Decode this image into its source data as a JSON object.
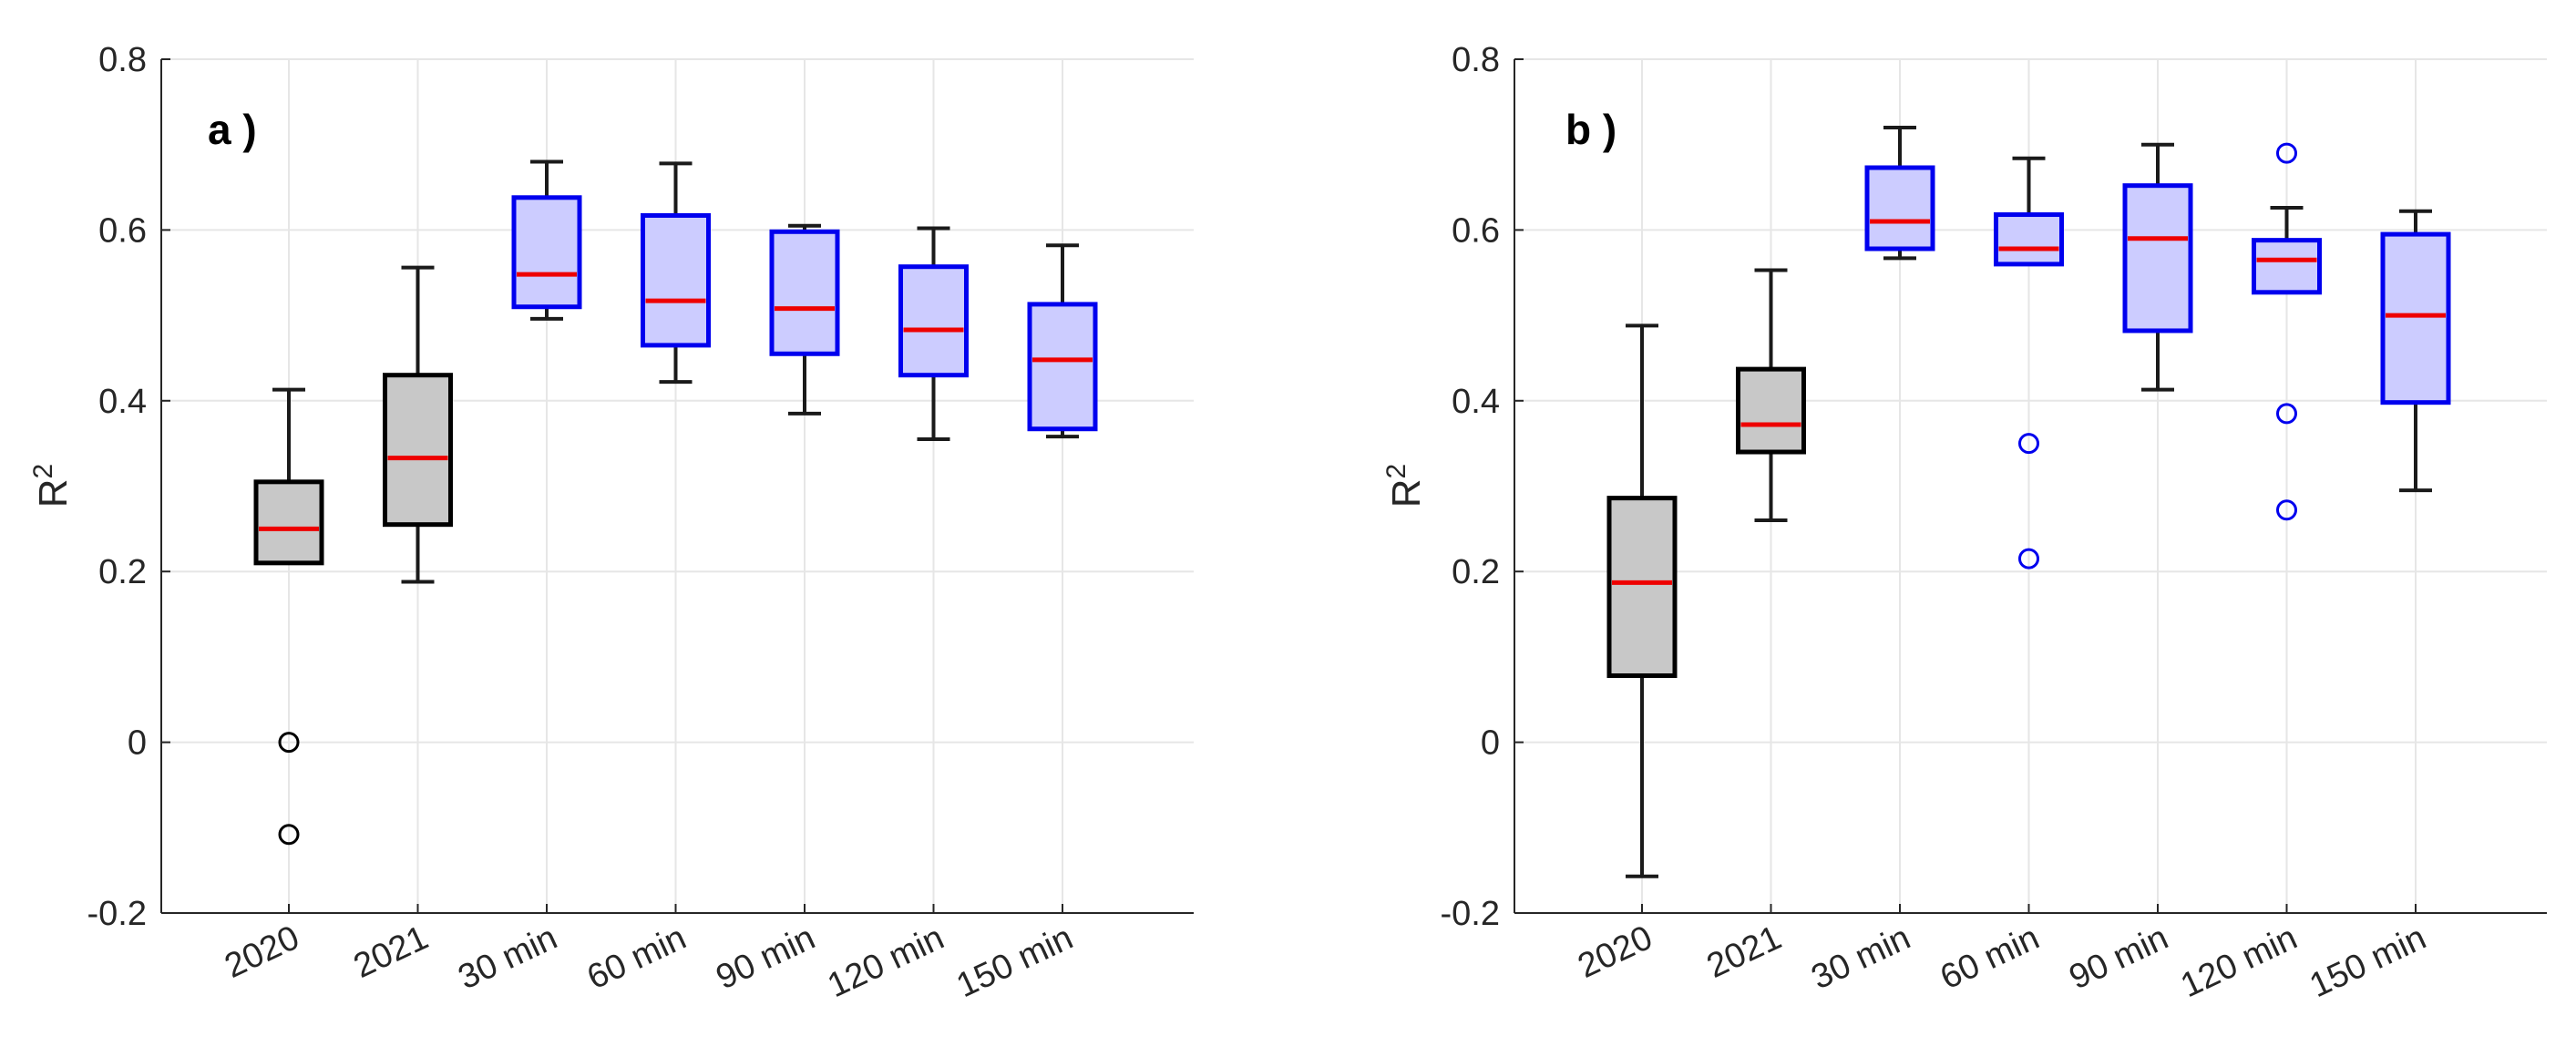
{
  "colors": {
    "background": "#ffffff",
    "grid": "#e6e6e6",
    "axis": "#262626",
    "year_box_fill": "#c8c8c8",
    "year_box_edge": "#000000",
    "model_box_fill": "#ccccff",
    "model_box_edge": "#0000ee",
    "median": "#ee0000",
    "whisker": "#1a1a1a",
    "outlier_year": "#000000",
    "outlier_model": "#0000ee"
  },
  "chart_data": [
    {
      "type": "box",
      "panel_label": "a )",
      "title": "",
      "xlabel": "",
      "ylabel": "R",
      "ylabel_superscript": "2",
      "ylim": [
        -0.2,
        0.8
      ],
      "yticks": [
        -0.2,
        0,
        0.2,
        0.4,
        0.6,
        0.8
      ],
      "ytick_labels": [
        "-0.2",
        "0",
        "0.2",
        "0.4",
        "0.6",
        "0.8"
      ],
      "grid": true,
      "categories": [
        "2020",
        "2021",
        "30 min",
        "60 min",
        "90 min",
        "120 min",
        "150 min"
      ],
      "boxes": [
        {
          "group": "year",
          "whisker_low": 0.21,
          "q1": 0.21,
          "median": 0.25,
          "q3": 0.305,
          "whisker_high": 0.413,
          "outliers": [
            0.0,
            -0.108
          ]
        },
        {
          "group": "year",
          "whisker_low": 0.188,
          "q1": 0.255,
          "median": 0.333,
          "q3": 0.43,
          "whisker_high": 0.556,
          "outliers": []
        },
        {
          "group": "model",
          "whisker_low": 0.496,
          "q1": 0.51,
          "median": 0.548,
          "q3": 0.638,
          "whisker_high": 0.68,
          "outliers": []
        },
        {
          "group": "model",
          "whisker_low": 0.422,
          "q1": 0.465,
          "median": 0.517,
          "q3": 0.617,
          "whisker_high": 0.678,
          "outliers": []
        },
        {
          "group": "model",
          "whisker_low": 0.385,
          "q1": 0.455,
          "median": 0.508,
          "q3": 0.598,
          "whisker_high": 0.605,
          "outliers": []
        },
        {
          "group": "model",
          "whisker_low": 0.355,
          "q1": 0.43,
          "median": 0.483,
          "q3": 0.557,
          "whisker_high": 0.602,
          "outliers": []
        },
        {
          "group": "model",
          "whisker_low": 0.358,
          "q1": 0.367,
          "median": 0.448,
          "q3": 0.513,
          "whisker_high": 0.582,
          "outliers": []
        }
      ]
    },
    {
      "type": "box",
      "panel_label": "b )",
      "title": "",
      "xlabel": "",
      "ylabel": "R",
      "ylabel_superscript": "2",
      "ylim": [
        -0.2,
        0.8
      ],
      "yticks": [
        -0.2,
        0,
        0.2,
        0.4,
        0.6,
        0.8
      ],
      "ytick_labels": [
        "-0.2",
        "0",
        "0.2",
        "0.4",
        "0.6",
        "0.8"
      ],
      "grid": true,
      "categories": [
        "2020",
        "2021",
        "30 min",
        "60 min",
        "90 min",
        "120 min",
        "150 min"
      ],
      "boxes": [
        {
          "group": "year",
          "whisker_low": -0.157,
          "q1": 0.078,
          "median": 0.187,
          "q3": 0.286,
          "whisker_high": 0.488,
          "outliers": []
        },
        {
          "group": "year",
          "whisker_low": 0.26,
          "q1": 0.34,
          "median": 0.372,
          "q3": 0.437,
          "whisker_high": 0.553,
          "outliers": []
        },
        {
          "group": "model",
          "whisker_low": 0.567,
          "q1": 0.578,
          "median": 0.61,
          "q3": 0.673,
          "whisker_high": 0.72,
          "outliers": []
        },
        {
          "group": "model",
          "whisker_low": 0.56,
          "q1": 0.56,
          "median": 0.578,
          "q3": 0.618,
          "whisker_high": 0.684,
          "outliers": [
            0.35,
            0.215
          ]
        },
        {
          "group": "model",
          "whisker_low": 0.413,
          "q1": 0.482,
          "median": 0.59,
          "q3": 0.652,
          "whisker_high": 0.7,
          "outliers": []
        },
        {
          "group": "model",
          "whisker_low": 0.527,
          "q1": 0.527,
          "median": 0.565,
          "q3": 0.588,
          "whisker_high": 0.626,
          "outliers": [
            0.69,
            0.385,
            0.272
          ]
        },
        {
          "group": "model",
          "whisker_low": 0.295,
          "q1": 0.398,
          "median": 0.5,
          "q3": 0.595,
          "whisker_high": 0.622,
          "outliers": []
        }
      ]
    }
  ]
}
